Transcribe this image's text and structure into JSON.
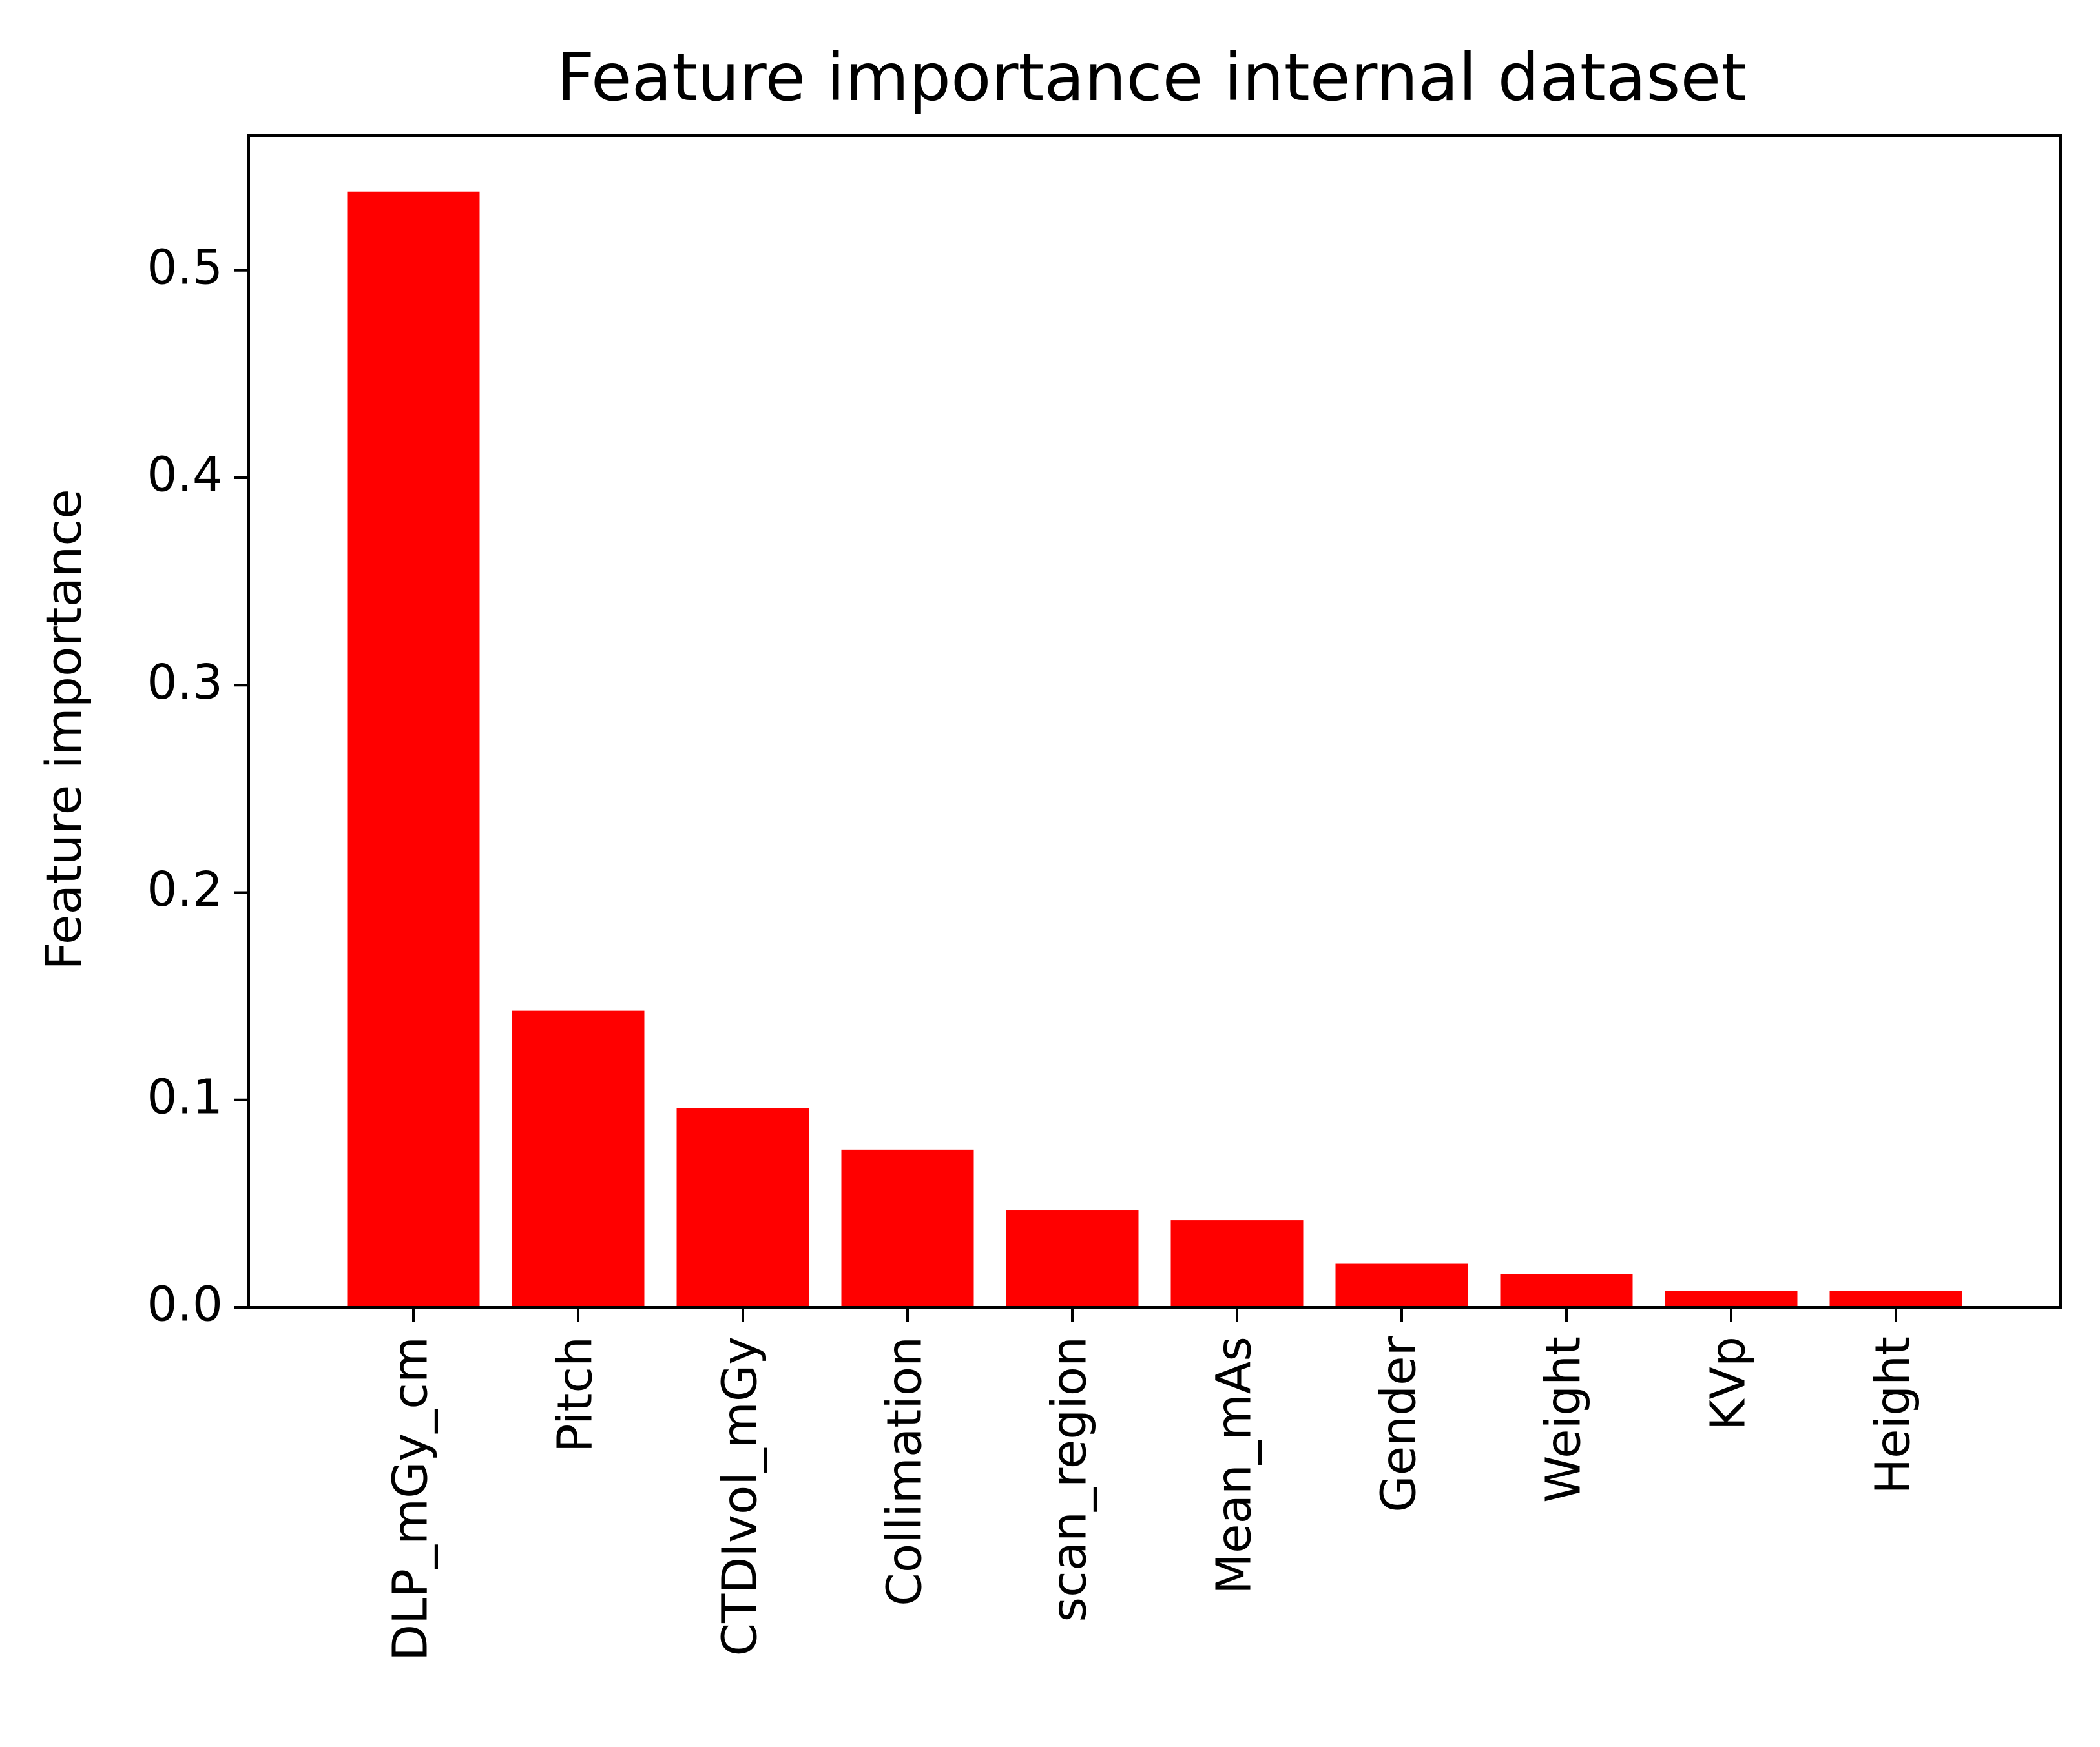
{
  "chart_data": {
    "type": "bar",
    "title": "Feature importance   internal dataset",
    "xlabel": "",
    "ylabel": "Feature importance",
    "categories": [
      "DLP_mGy_cm",
      "Pitch",
      "CTDIvol_mGy",
      "Collimation",
      "scan_region",
      "Mean_mAs",
      "Gender",
      "Weight",
      "KVp",
      "Height"
    ],
    "values": [
      0.538,
      0.143,
      0.096,
      0.076,
      0.047,
      0.042,
      0.021,
      0.016,
      0.008,
      0.008
    ],
    "ylim": [
      0,
      0.565
    ],
    "yticks": [
      0.0,
      0.1,
      0.2,
      0.3,
      0.4,
      0.5
    ],
    "ytick_labels": [
      "0.0",
      "0.1",
      "0.2",
      "0.3",
      "0.4",
      "0.5"
    ],
    "bar_color": "#ff0000",
    "grid": false,
    "legend": "none"
  }
}
